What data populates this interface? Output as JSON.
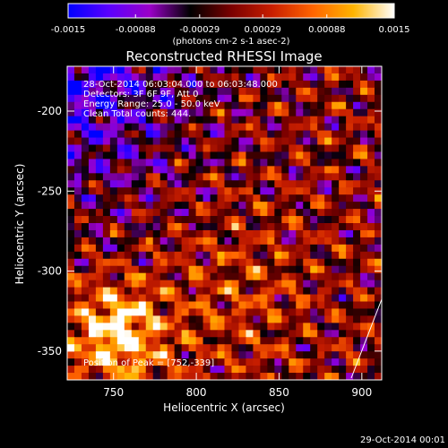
{
  "chart_data": {
    "type": "heatmap",
    "title": "Reconstructed RHESSI Image",
    "xlabel": "Heliocentric X (arcsec)",
    "ylabel": "Heliocentric Y (arcsec)",
    "xlim": [
      722,
      912
    ],
    "ylim": [
      -368,
      -172
    ],
    "x_ticks": [
      750,
      800,
      850,
      900
    ],
    "y_ticks": [
      -200,
      -250,
      -300,
      -350
    ],
    "colorbar": {
      "label": "(photons cm-2 s-1 asec-2)",
      "range": [
        -0.0015,
        0.0015
      ],
      "ticks": [
        "-0.0015",
        "-0.00088",
        "-0.00029",
        "0.00029",
        "0.00088",
        "0.0015"
      ],
      "colors": [
        "#0000ff",
        "#5a00ff",
        "#9a00c8",
        "#000000",
        "#7a0000",
        "#c81e00",
        "#ff6400",
        "#ffb400",
        "#ffffff"
      ]
    },
    "annotations": [
      "28-Oct-2014 06:03:04.000 to 06:03:48.000",
      "Detectors: 3F 6F 9F, Att 0",
      "Energy Range: 25.0 - 50.0 keV",
      "Clean     Total counts: 444."
    ],
    "peak_label": "Position of Peak = [752,-339]",
    "peak": [
      752,
      -339
    ]
  },
  "footer": {
    "date": "29-Oct-2014 00:01"
  }
}
